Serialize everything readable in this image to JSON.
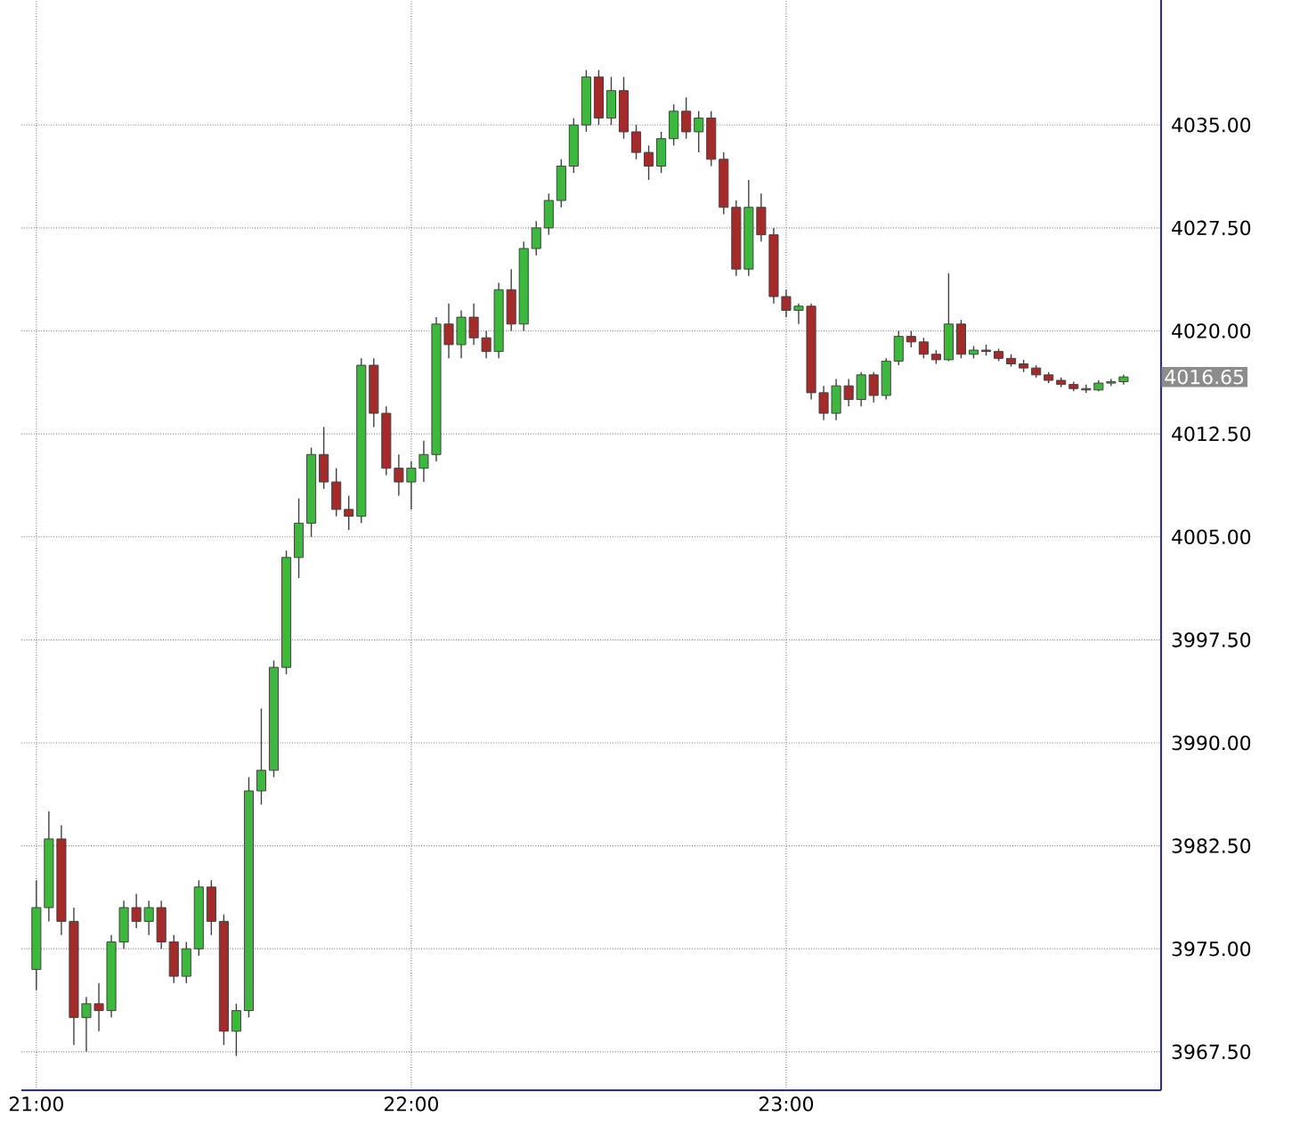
{
  "chart_data": {
    "type": "candlestick",
    "x": [
      21.0,
      21.0333,
      21.0667,
      21.1,
      21.1333,
      21.1667,
      21.2,
      21.2333,
      21.2667,
      21.3,
      21.3333,
      21.3667,
      21.4,
      21.4333,
      21.4667,
      21.5,
      21.5333,
      21.5667,
      21.6,
      21.6333,
      21.6667,
      21.7,
      21.7333,
      21.7667,
      21.8,
      21.8333,
      21.8667,
      21.9,
      21.9333,
      21.9667,
      22.0,
      22.0333,
      22.0667,
      22.1,
      22.1333,
      22.1667,
      22.2,
      22.2333,
      22.2667,
      22.3,
      22.3333,
      22.3667,
      22.4,
      22.4333,
      22.4667,
      22.5,
      22.5333,
      22.5667,
      22.6,
      22.6333,
      22.6667,
      22.7,
      22.7333,
      22.7667,
      22.8,
      22.8333,
      22.8667,
      22.9,
      22.9333,
      22.9667,
      23.0,
      23.0333,
      23.0667,
      23.1,
      23.1333,
      23.1667,
      23.2,
      23.2333,
      23.2667,
      23.3,
      23.3333,
      23.3667,
      23.4,
      23.4333,
      23.4667,
      23.5,
      23.5333,
      23.5667,
      23.6,
      23.6333,
      23.6667,
      23.7,
      23.7333,
      23.7667,
      23.8,
      23.8333,
      23.8667,
      23.9
    ],
    "ohlc": [
      [
        3973.5,
        3980,
        3972,
        3978
      ],
      [
        3978,
        3985,
        3977,
        3983
      ],
      [
        3983,
        3984,
        3976,
        3977
      ],
      [
        3977,
        3978,
        3968,
        3970
      ],
      [
        3970,
        3971.5,
        3967.5,
        3971
      ],
      [
        3971,
        3972.5,
        3969,
        3970.5
      ],
      [
        3970.5,
        3976,
        3970,
        3975.5
      ],
      [
        3975.5,
        3978.5,
        3975,
        3978
      ],
      [
        3978,
        3979,
        3976.5,
        3977
      ],
      [
        3977,
        3978.5,
        3976,
        3978
      ],
      [
        3978,
        3978.5,
        3975,
        3975.5
      ],
      [
        3975.5,
        3976,
        3972.5,
        3973
      ],
      [
        3973,
        3975.5,
        3972.5,
        3975
      ],
      [
        3975,
        3980,
        3974.5,
        3979.5
      ],
      [
        3979.5,
        3980,
        3976,
        3977
      ],
      [
        3977,
        3977.5,
        3968,
        3969
      ],
      [
        3969,
        3971,
        3967.2,
        3970.5
      ],
      [
        3970.5,
        3987.5,
        3970,
        3986.5
      ],
      [
        3986.5,
        3992.5,
        3985.5,
        3988
      ],
      [
        3988,
        3996,
        3987.5,
        3995.5
      ],
      [
        3995.5,
        4004,
        3995,
        4003.5
      ],
      [
        4003.5,
        4007.8,
        4002,
        4006
      ],
      [
        4006,
        4011.5,
        4005,
        4011
      ],
      [
        4011,
        4013,
        4008.5,
        4009
      ],
      [
        4009,
        4010,
        4006.5,
        4007
      ],
      [
        4007,
        4008,
        4005.5,
        4006.5
      ],
      [
        4006.5,
        4018,
        4006,
        4017.5
      ],
      [
        4017.5,
        4018,
        4013,
        4014
      ],
      [
        4014,
        4014.5,
        4009.5,
        4010
      ],
      [
        4010,
        4011,
        4008,
        4009
      ],
      [
        4009,
        4010.5,
        4007,
        4010
      ],
      [
        4010,
        4012,
        4009,
        4011
      ],
      [
        4011,
        4021,
        4010.5,
        4020.5
      ],
      [
        4020.5,
        4022,
        4018,
        4019
      ],
      [
        4019,
        4021.5,
        4018,
        4021
      ],
      [
        4021,
        4022,
        4019,
        4019.5
      ],
      [
        4019.5,
        4020,
        4018,
        4018.5
      ],
      [
        4018.5,
        4023.5,
        4018,
        4023
      ],
      [
        4023,
        4024.5,
        4020,
        4020.5
      ],
      [
        4020.5,
        4026.5,
        4020,
        4026
      ],
      [
        4026,
        4028,
        4025.5,
        4027.5
      ],
      [
        4027.5,
        4030,
        4027,
        4029.5
      ],
      [
        4029.5,
        4032.5,
        4029,
        4032
      ],
      [
        4032,
        4035.5,
        4031.5,
        4035
      ],
      [
        4035,
        4039,
        4034.5,
        4038.5
      ],
      [
        4038.5,
        4039,
        4035,
        4035.5
      ],
      [
        4035.5,
        4038.5,
        4035,
        4037.5
      ],
      [
        4037.5,
        4038.5,
        4034,
        4034.5
      ],
      [
        4034.5,
        4035,
        4032.5,
        4033
      ],
      [
        4033,
        4033.5,
        4031,
        4032
      ],
      [
        4032,
        4034.5,
        4031.5,
        4034
      ],
      [
        4034,
        4036.5,
        4033.5,
        4036
      ],
      [
        4036,
        4037,
        4034,
        4034.5
      ],
      [
        4034.5,
        4036,
        4033,
        4035.5
      ],
      [
        4035.5,
        4036,
        4032,
        4032.5
      ],
      [
        4032.5,
        4033,
        4028.5,
        4029
      ],
      [
        4029,
        4029.5,
        4024,
        4024.5
      ],
      [
        4024.5,
        4031,
        4024,
        4029
      ],
      [
        4029,
        4030,
        4026.5,
        4027
      ],
      [
        4027,
        4027.5,
        4022,
        4022.5
      ],
      [
        4022.5,
        4023,
        4021,
        4021.5
      ],
      [
        4021.5,
        4022,
        4020.5,
        4021.8
      ],
      [
        4021.8,
        4022,
        4015,
        4015.5
      ],
      [
        4015.5,
        4016,
        4013.5,
        4014
      ],
      [
        4014,
        4016.5,
        4013.5,
        4016
      ],
      [
        4016,
        4016.5,
        4014.5,
        4015
      ],
      [
        4015,
        4017,
        4014.5,
        4016.8
      ],
      [
        4016.8,
        4017,
        4014.8,
        4015.3
      ],
      [
        4015.3,
        4018,
        4015,
        4017.8
      ],
      [
        4017.8,
        4020,
        4017.5,
        4019.6
      ],
      [
        4019.6,
        4020,
        4018.8,
        4019.2
      ],
      [
        4019.2,
        4019.5,
        4018,
        4018.3
      ],
      [
        4018.3,
        4018.6,
        4017.6,
        4017.9
      ],
      [
        4017.9,
        4024.2,
        4017.8,
        4020.5
      ],
      [
        4020.5,
        4020.8,
        4018,
        4018.3
      ],
      [
        4018.3,
        4018.9,
        4018,
        4018.6
      ],
      [
        4018.6,
        4019,
        4018.2,
        4018.5
      ],
      [
        4018.5,
        4018.7,
        4017.8,
        4018
      ],
      [
        4018,
        4018.3,
        4017.4,
        4017.6
      ],
      [
        4017.6,
        4017.9,
        4017,
        4017.3
      ],
      [
        4017.3,
        4017.5,
        4016.6,
        4016.8
      ],
      [
        4016.8,
        4017,
        4016.2,
        4016.4
      ],
      [
        4016.4,
        4016.6,
        4015.9,
        4016.1
      ],
      [
        4016.1,
        4016.3,
        4015.6,
        4015.8
      ],
      [
        4015.8,
        4016.1,
        4015.5,
        4015.7
      ],
      [
        4015.7,
        4016.4,
        4015.6,
        4016.2
      ],
      [
        4016.2,
        4016.5,
        4016,
        4016.3
      ],
      [
        4016.3,
        4016.8,
        4016.1,
        4016.65
      ]
    ],
    "colors": [
      "#3cb83c",
      "#3cb83c",
      "#a52a2a",
      "#a52a2a",
      "#3cb83c",
      "#a52a2a",
      "#3cb83c",
      "#3cb83c",
      "#a52a2a",
      "#3cb83c",
      "#a52a2a",
      "#a52a2a",
      "#3cb83c",
      "#3cb83c",
      "#a52a2a",
      "#a52a2a",
      "#3cb83c",
      "#3cb83c",
      "#3cb83c",
      "#3cb83c",
      "#3cb83c",
      "#3cb83c",
      "#3cb83c",
      "#a52a2a",
      "#a52a2a",
      "#a52a2a",
      "#3cb83c",
      "#a52a2a",
      "#a52a2a",
      "#a52a2a",
      "#3cb83c",
      "#3cb83c",
      "#3cb83c",
      "#a52a2a",
      "#3cb83c",
      "#a52a2a",
      "#a52a2a",
      "#3cb83c",
      "#a52a2a",
      "#3cb83c",
      "#3cb83c",
      "#3cb83c",
      "#3cb83c",
      "#3cb83c",
      "#3cb83c",
      "#a52a2a",
      "#3cb83c",
      "#a52a2a",
      "#a52a2a",
      "#a52a2a",
      "#3cb83c",
      "#3cb83c",
      "#a52a2a",
      "#3cb83c",
      "#a52a2a",
      "#a52a2a",
      "#a52a2a",
      "#3cb83c",
      "#a52a2a",
      "#a52a2a",
      "#a52a2a",
      "#3cb83c",
      "#a52a2a",
      "#a52a2a",
      "#3cb83c",
      "#a52a2a",
      "#3cb83c",
      "#a52a2a",
      "#3cb83c",
      "#3cb83c",
      "#a52a2a",
      "#a52a2a",
      "#a52a2a",
      "#3cb83c",
      "#a52a2a",
      "#3cb83c",
      "#a52a2a",
      "#a52a2a",
      "#a52a2a",
      "#a52a2a",
      "#a52a2a",
      "#a52a2a",
      "#a52a2a",
      "#a52a2a",
      "#a52a2a",
      "#3cb83c",
      "#3cb83c",
      "#3cb83c"
    ],
    "xlim": [
      20.96,
      24.0
    ],
    "xticks": [
      {
        "value": 21,
        "label": "21:00"
      },
      {
        "value": 22,
        "label": "22:00"
      },
      {
        "value": 23,
        "label": "23:00"
      }
    ],
    "ylim": [
      3964.7,
      4044.1
    ],
    "yticks": [
      {
        "value": 3967.5,
        "label": "3967.50"
      },
      {
        "value": 3975,
        "label": "3975.00"
      },
      {
        "value": 3982.5,
        "label": "3982.50"
      },
      {
        "value": 3990,
        "label": "3990.00"
      },
      {
        "value": 3997.5,
        "label": "3997.50"
      },
      {
        "value": 4005,
        "label": "4005.00"
      },
      {
        "value": 4012.5,
        "label": "4012.50"
      },
      {
        "value": 4020,
        "label": "4020.00"
      },
      {
        "value": 4027.5,
        "label": "4027.50"
      },
      {
        "value": 4035,
        "label": "4035.00"
      }
    ],
    "grid": true,
    "annotations": [
      "4016.65"
    ]
  }
}
